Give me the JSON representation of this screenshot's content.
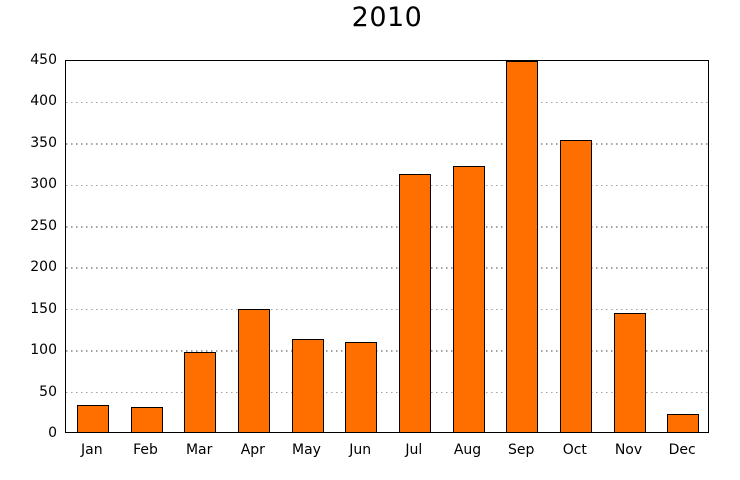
{
  "chart_data": {
    "type": "bar",
    "title": "2010",
    "categories": [
      "Jan",
      "Feb",
      "Mar",
      "Apr",
      "May",
      "Jun",
      "Jul",
      "Aug",
      "Sep",
      "Oct",
      "Nov",
      "Dec"
    ],
    "values": [
      33,
      30,
      97,
      148,
      112,
      108,
      311,
      321,
      448,
      352,
      144,
      22
    ],
    "xlabel": "",
    "ylabel": "",
    "ylim": [
      0,
      450
    ],
    "ytick_step": 50,
    "ytick_labels": [
      "0",
      "50",
      "100",
      "150",
      "200",
      "250",
      "300",
      "350",
      "400",
      "450"
    ],
    "grid": "horizontal-dotted",
    "legend_position": "none",
    "bar_fill_color": "#ff6f00",
    "bar_edge_color": "#000000",
    "grid_color": "#a3a3a3",
    "frame_color": "#000000",
    "background_color": "#ffffff"
  }
}
